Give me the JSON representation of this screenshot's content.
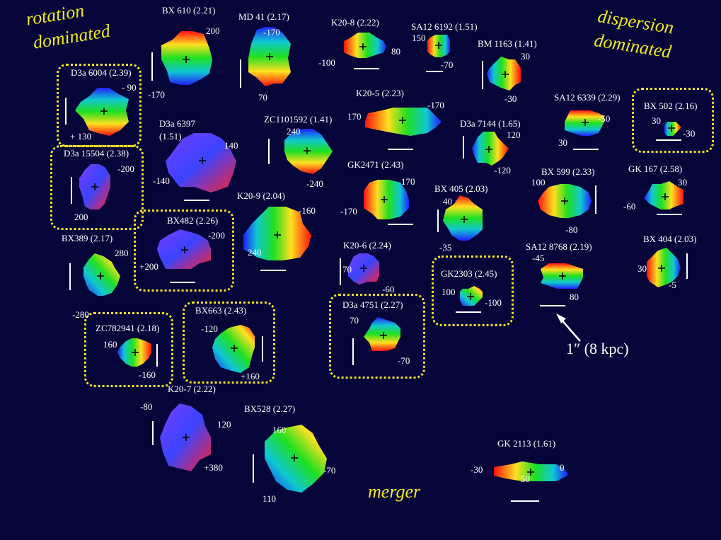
{
  "categories": {
    "rotation": [
      "rotation",
      "dominated"
    ],
    "dispersion": [
      "dispersion",
      "dominated"
    ],
    "merger": "merger"
  },
  "scale_label": "1″ (8 kpc)",
  "galaxies": [
    {
      "id": "bx610",
      "name": "BX 610 (2.21)",
      "vals": [
        "200",
        "-170"
      ]
    },
    {
      "id": "md41",
      "name": "MD 41 (2.17)",
      "vals": [
        "-170",
        "70"
      ]
    },
    {
      "id": "k20-8",
      "name": "K20-8 (2.22)",
      "vals": [
        "-100",
        "80"
      ]
    },
    {
      "id": "sa12-6192",
      "name": "SA12 6192 (1.51)",
      "vals": [
        "150",
        "-70"
      ]
    },
    {
      "id": "bm1163",
      "name": "BM 1163 (1.41)",
      "vals": [
        "30",
        "-30"
      ]
    },
    {
      "id": "d3a6004",
      "name": "D3a 6004 (2.39)",
      "vals": [
        "- 90",
        "+ 130"
      ]
    },
    {
      "id": "d3a6397",
      "name": "D3a 6397",
      "sub": "(1.51)",
      "vals": [
        "140",
        "-140"
      ]
    },
    {
      "id": "zc1101592",
      "name": "ZC1101592 (1.41)",
      "vals": [
        "240",
        "-240"
      ]
    },
    {
      "id": "k20-5",
      "name": "K20-5  (2.23)",
      "vals": [
        "170",
        "-170"
      ]
    },
    {
      "id": "d3a7144",
      "name": "D3a 7144 (1.65)",
      "vals": [
        "120",
        "-120"
      ]
    },
    {
      "id": "sa12-6339",
      "name": "SA12  6339 (2.29)",
      "vals": [
        "-50",
        "30"
      ]
    },
    {
      "id": "bx502",
      "name": "BX 502 (2.16)",
      "vals": [
        "30",
        "-30"
      ]
    },
    {
      "id": "d3a15504",
      "name": "D3a 15504 (2.38)",
      "vals": [
        "-200",
        "200"
      ]
    },
    {
      "id": "gk2471",
      "name": "GK2471 (2.43)",
      "vals": [
        "170",
        "-170"
      ]
    },
    {
      "id": "bx405",
      "name": "BX 405 (2.03)",
      "vals": [
        "40",
        "-35"
      ]
    },
    {
      "id": "bx599",
      "name": "BX 599 (2.33)",
      "vals": [
        "100",
        "-80"
      ]
    },
    {
      "id": "gk167",
      "name": "GK 167 (2.58)",
      "vals": [
        "30",
        "-60"
      ]
    },
    {
      "id": "k20-9",
      "name": "K20-9 (2.04)",
      "vals": [
        "-160",
        "240"
      ]
    },
    {
      "id": "bx482",
      "name": "BX482 (2.26)",
      "vals": [
        "-200",
        "+200"
      ]
    },
    {
      "id": "bx389",
      "name": "BX389 (2.17)",
      "vals": [
        "280",
        "-280"
      ]
    },
    {
      "id": "k20-6",
      "name": "K20-6 (2.24)",
      "vals": [
        "70",
        "-60"
      ]
    },
    {
      "id": "gk2303",
      "name": "GK2303 (2.45)",
      "vals": [
        "100",
        "-100"
      ]
    },
    {
      "id": "sa12-8768",
      "name": "SA12 8768 (2.19)",
      "vals": [
        "-45",
        "80"
      ]
    },
    {
      "id": "bx404",
      "name": "BX 404 (2.03)",
      "vals": [
        "30",
        "-5"
      ]
    },
    {
      "id": "d3a4751",
      "name": "D3a 4751 (2.27)",
      "vals": [
        "70",
        "-70"
      ]
    },
    {
      "id": "zc782941",
      "name": "ZC782941 (2.18)",
      "vals": [
        "160",
        "-160"
      ]
    },
    {
      "id": "bx663",
      "name": "BX663 (2.43)",
      "vals": [
        "-120",
        "+160"
      ]
    },
    {
      "id": "k20-7",
      "name": "K20-7 (2.22)",
      "vals": [
        "-80",
        "120",
        "+380"
      ]
    },
    {
      "id": "bx528",
      "name": "BX528 (2.27)",
      "vals": [
        "160",
        "-70",
        "110"
      ]
    },
    {
      "id": "gk2113",
      "name": "GK 2113 (1.61)",
      "vals": [
        "-30",
        "50",
        "0"
      ]
    }
  ]
}
